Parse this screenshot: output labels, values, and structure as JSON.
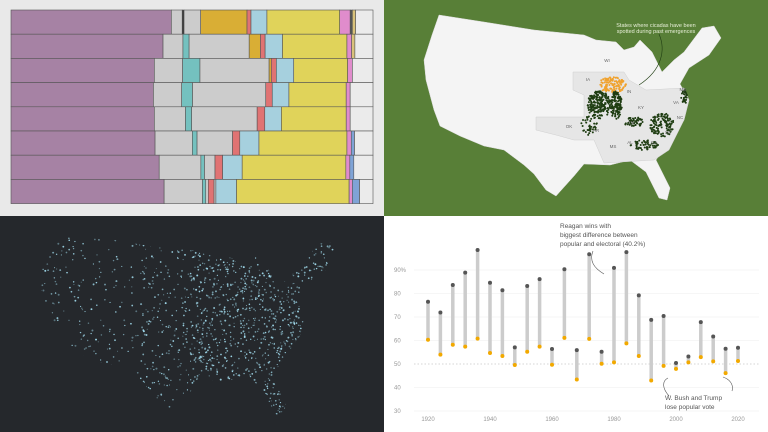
{
  "chart_data": [
    {
      "type": "bar",
      "stacked": true,
      "orientation": "horizontal",
      "unit": "percent share (approx.)",
      "rows": [
        {
          "segments": [
            [
              "#a682a4",
              44.3
            ],
            [
              "#cccccc",
              3.0
            ],
            [
              "#333333",
              0.5
            ],
            [
              "#cccccc",
              4.6
            ],
            [
              "#d9ae35",
              12.8
            ],
            [
              "#e07373",
              1.1
            ],
            [
              "#a6d0de",
              4.4
            ],
            [
              "#e0d35a",
              20.1
            ],
            [
              "#e08ccc",
              2.9
            ],
            [
              "#555555",
              0.6
            ],
            [
              "#d9c27a",
              0.9
            ],
            [
              "#ebebeb",
              4.8
            ]
          ]
        },
        {
          "segments": [
            [
              "#a682a4",
              42.0
            ],
            [
              "#cccccc",
              5.5
            ],
            [
              "#74c1bf",
              1.7
            ],
            [
              "#cccccc",
              16.6
            ],
            [
              "#d9ae35",
              3.1
            ],
            [
              "#e07373",
              1.3
            ],
            [
              "#a6d0de",
              4.8
            ],
            [
              "#e0d35a",
              17.8
            ],
            [
              "#e08ccc",
              1.3
            ],
            [
              "#d9c27a",
              0.9
            ],
            [
              "#ebebeb",
              5.0
            ]
          ]
        },
        {
          "segments": [
            [
              "#a682a4",
              39.6
            ],
            [
              "#cccccc",
              7.8
            ],
            [
              "#74c1bf",
              4.8
            ],
            [
              "#cccccc",
              19.1
            ],
            [
              "#d9ae35",
              0.6
            ],
            [
              "#e07373",
              1.4
            ],
            [
              "#a6d0de",
              4.8
            ],
            [
              "#e0d35a",
              14.9
            ],
            [
              "#e08ccc",
              1.3
            ],
            [
              "#ebebeb",
              5.7
            ]
          ]
        },
        {
          "segments": [
            [
              "#a682a4",
              39.3
            ],
            [
              "#cccccc",
              7.8
            ],
            [
              "#74c1bf",
              3.0
            ],
            [
              "#cccccc",
              20.2
            ],
            [
              "#e07373",
              1.8
            ],
            [
              "#a6d0de",
              4.6
            ],
            [
              "#e0d35a",
              15.8
            ],
            [
              "#e08ccc",
              1.1
            ],
            [
              "#ebebeb",
              6.3
            ]
          ]
        },
        {
          "segments": [
            [
              "#a682a4",
              39.6
            ],
            [
              "#cccccc",
              8.6
            ],
            [
              "#74c1bf",
              1.7
            ],
            [
              "#cccccc",
              18.1
            ],
            [
              "#e07373",
              2.1
            ],
            [
              "#a6d0de",
              4.6
            ],
            [
              "#e0d35a",
              17.9
            ],
            [
              "#e08ccc",
              1.1
            ],
            [
              "#ebebeb",
              6.3
            ]
          ]
        },
        {
          "segments": [
            [
              "#a682a4",
              39.8
            ],
            [
              "#cccccc",
              10.3
            ],
            [
              "#74c1bf",
              1.3
            ],
            [
              "#cccccc",
              9.8
            ],
            [
              "#e07373",
              2.0
            ],
            [
              "#a6d0de",
              5.3
            ],
            [
              "#e0d35a",
              24.3
            ],
            [
              "#e08ccc",
              1.2
            ],
            [
              "#7fa3d6",
              0.9
            ],
            [
              "#ebebeb",
              5.1
            ]
          ]
        },
        {
          "segments": [
            [
              "#a682a4",
              40.9
            ],
            [
              "#cccccc",
              11.5
            ],
            [
              "#74c1bf",
              1.0
            ],
            [
              "#cccccc",
              2.9
            ],
            [
              "#e07373",
              2.1
            ],
            [
              "#a6d0de",
              5.4
            ],
            [
              "#e0d35a",
              28.6
            ],
            [
              "#e08ccc",
              1.1
            ],
            [
              "#7fa3d6",
              1.1
            ],
            [
              "#ebebeb",
              5.3
            ]
          ]
        },
        {
          "segments": [
            [
              "#a682a4",
              42.3
            ],
            [
              "#cccccc",
              10.6
            ],
            [
              "#74c1bf",
              0.9
            ],
            [
              "#cccccc",
              0.7
            ],
            [
              "#e07373",
              1.6
            ],
            [
              "#cccccc",
              0.5
            ],
            [
              "#a6d0de",
              5.7
            ],
            [
              "#e0d35a",
              31.1
            ],
            [
              "#e08ccc",
              0.9
            ],
            [
              "#7fa3d6",
              2.0
            ],
            [
              "#ebebeb",
              3.7
            ]
          ]
        }
      ]
    },
    {
      "type": "scatter",
      "title": "",
      "ylim": [
        30,
        100
      ],
      "yticks": [
        "90%",
        "80",
        "70",
        "60",
        "50",
        "40",
        "30"
      ],
      "ytick_values": [
        90,
        80,
        70,
        60,
        50,
        40,
        30
      ],
      "xticks": [
        "1920",
        "1940",
        "1960",
        "1980",
        "2000",
        "2020"
      ],
      "reference_line": 50,
      "colors": {
        "electoral": "#555555",
        "popular": "#f2a900",
        "range": "#cccccc"
      },
      "years": [
        1920,
        1924,
        1928,
        1932,
        1936,
        1940,
        1944,
        1948,
        1952,
        1956,
        1960,
        1964,
        1968,
        1972,
        1976,
        1980,
        1984,
        1988,
        1992,
        1996,
        2000,
        2004,
        2008,
        2012,
        2016,
        2020
      ],
      "electoral": [
        76.5,
        71.9,
        83.6,
        88.9,
        98.5,
        84.6,
        81.4,
        57.1,
        83.2,
        86.1,
        56.4,
        90.3,
        55.9,
        96.7,
        55.2,
        90.9,
        97.6,
        79.2,
        68.8,
        70.4,
        50.4,
        53.2,
        67.8,
        61.7,
        56.5,
        56.9
      ],
      "popular": [
        60.3,
        54.0,
        58.2,
        57.4,
        60.8,
        54.7,
        53.4,
        49.6,
        55.2,
        57.4,
        49.7,
        61.1,
        43.4,
        60.7,
        50.1,
        50.7,
        58.8,
        53.4,
        43.0,
        49.2,
        47.9,
        50.7,
        52.9,
        51.1,
        46.1,
        51.3
      ],
      "annotations": {
        "reagan": [
          "Reagan wins with",
          "biggest difference between",
          "popular and electoral (40.2%)"
        ],
        "bush_trump": [
          "W. Bush and Trump",
          "lose popular vote"
        ]
      }
    }
  ],
  "cicada_map": {
    "background": "#587f37",
    "annotation": [
      "States where cicadas have been",
      "spotted during past emergences"
    ],
    "state_labels": [
      "WI",
      "IA",
      "IN",
      "KY",
      "MD",
      "VA",
      "NC",
      "OK",
      "AR",
      "TN",
      "SC",
      "MS",
      "AL",
      "GA"
    ],
    "colors": {
      "past": "#f0a22e",
      "current": "#1f3d12"
    }
  },
  "dot_map": {
    "background": "#25282c",
    "dot_color": "#9fd8ea"
  }
}
